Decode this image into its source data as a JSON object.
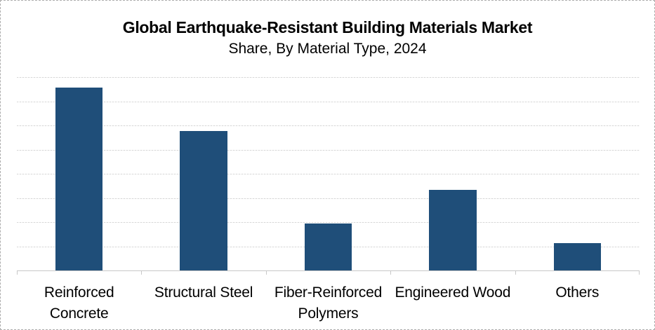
{
  "chart": {
    "title": "Global Earthquake-Resistant Building Materials Market",
    "subtitle": "Share, By Material Type, 2024"
  },
  "chart_data": {
    "type": "bar",
    "title": "Global Earthquake-Resistant Building Materials Market",
    "subtitle": "Share, By Material Type, 2024",
    "categories": [
      "Reinforced\nConcrete",
      "Structural Steel",
      "Fiber-Reinforced\nPolymers",
      "Engineered Wood",
      "Others"
    ],
    "values": [
      37.8,
      28.9,
      9.7,
      16.7,
      5.6
    ],
    "value_note": "Percent market share estimated from unlabeled gridlines (gridline step = 5)",
    "xlabel": "",
    "ylabel": "",
    "ylim": [
      0,
      40
    ],
    "gridline_step": 5,
    "grid": "horizontal dotted, no y-axis tick labels",
    "legend": "none",
    "colors": {
      "bar": "#1F4E79",
      "gridline": "#D6D6D6",
      "axis": "#C8C8C8",
      "text": "#000000",
      "frame_border": "#ADADAD",
      "background": "#FFFFFF"
    }
  }
}
